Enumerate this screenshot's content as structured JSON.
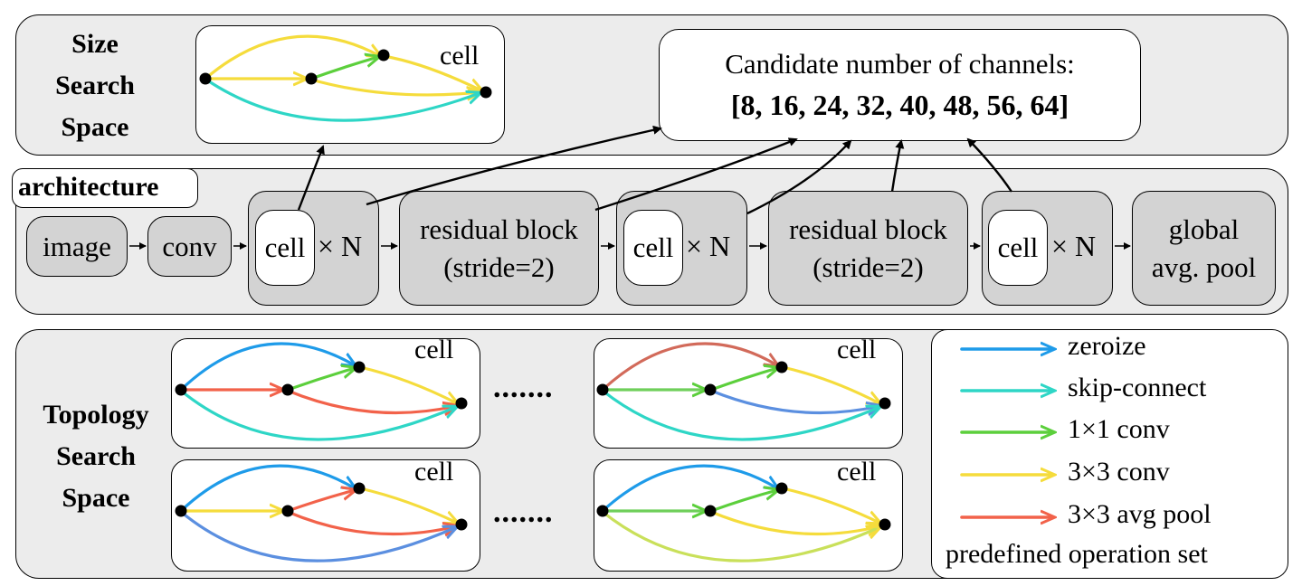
{
  "size_space": {
    "title_lines": [
      "Size",
      "Search",
      "Space"
    ],
    "cell_label": "cell",
    "candidates_title": "Candidate number of channels:",
    "candidates_values": "[8, 16, 24, 32, 40, 48, 56, 64]"
  },
  "architecture": {
    "title": "architecture",
    "image_label": "image",
    "conv_label": "conv",
    "cell_label": "cell",
    "repeat_label": "× N",
    "residual_line1": "residual block",
    "residual_line2": "(stride=2)",
    "pool_line1": "global",
    "pool_line2": "avg. pool"
  },
  "topology_space": {
    "title_lines": [
      "Topology",
      "Search",
      "Space"
    ],
    "cell_label": "cell",
    "ellipsis": "......."
  },
  "legend": {
    "items": [
      {
        "label": "zeroize",
        "color": "#1e9be9"
      },
      {
        "label": "skip-connect",
        "color": "#2ed6c6"
      },
      {
        "label": "1×1 conv",
        "color": "#5ccf3c"
      },
      {
        "label": "3×3 conv",
        "color": "#f5dc3c"
      },
      {
        "label": "3×3 avg pool",
        "color": "#f2624a"
      }
    ],
    "caption": "predefined operation set"
  }
}
